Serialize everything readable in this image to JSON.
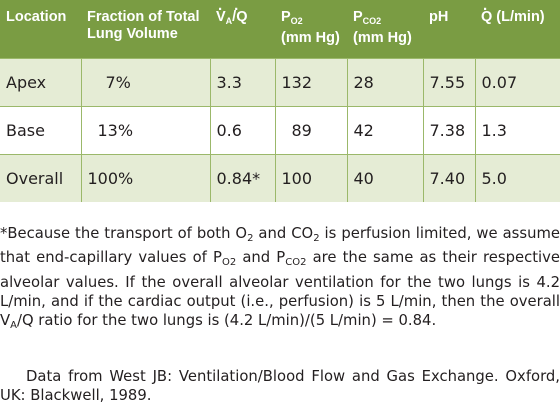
{
  "headers": {
    "location": "Location",
    "fraction": "Fraction of Total Lung Volume",
    "va_q_pre": "V",
    "va_q_sub": "A",
    "va_q_post": "/Q",
    "po2_main": "P",
    "po2_sub": "O2",
    "po2_unit": "(mm Hg)",
    "pco2_main": "P",
    "pco2_sub": "CO2",
    "pco2_unit": "(mm Hg)",
    "ph": "pH",
    "q_pre": "Q",
    "q_unit": " (L/min)"
  },
  "rows": [
    {
      "location": "Apex",
      "fraction": "7%",
      "va_q": "3.3",
      "po2": "132",
      "pco2": "28",
      "ph": "7.55",
      "q": "0.07"
    },
    {
      "location": "Base",
      "fraction": "13%",
      "va_q": "0.6",
      "po2": "89",
      "pco2": "42",
      "ph": "7.38",
      "q": "1.3"
    },
    {
      "location": "Overall",
      "fraction": "100%",
      "va_q": "0.84*",
      "po2": "100",
      "pco2": "40",
      "ph": "7.40",
      "q": "5.0"
    }
  ],
  "footnote": {
    "p1": "*Because the transport of both O",
    "s1": "2",
    "p2": " and CO",
    "s2": "2",
    "p3": " is perfusion limited, we assume that end-capillary values of P",
    "s3": "O2",
    "p4": " and P",
    "s4": "CO2",
    "p5": " are the same as their respective alveolar values. If the overall alveolar ventilation for the two lungs is 4.2 L/min, and if the cardiac output (i.e., perfusion) is 5 L/min, then the overall V",
    "s5": "A",
    "p6": "/Q ratio for the two lungs is (4.2 L/min)/(5 L/min) = 0.84."
  },
  "source": "Data from West JB: Ventilation/Blood Flow and Gas Exchange. Oxford, UK: Blackwell, 1989."
}
